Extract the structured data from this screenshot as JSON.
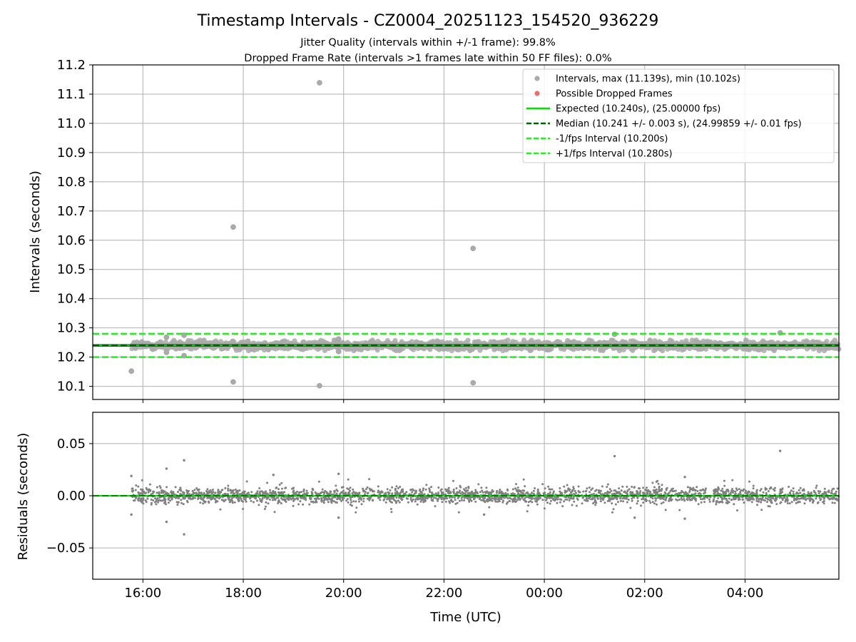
{
  "chart_data": {
    "type": "scatter",
    "title": "Timestamp Intervals - CZ0004_20251123_154520_936229",
    "subtitles": [
      "Jitter Quality (intervals within +/-1 frame): 99.8%",
      "Dropped Frame Rate (intervals >1 frames late within 50 FF files): 0.0%"
    ],
    "xlabel": "Time (UTC)",
    "x_tick_labels": [
      "16:00",
      "18:00",
      "20:00",
      "22:00",
      "00:00",
      "02:00",
      "04:00"
    ],
    "x_tick_hours": [
      16,
      18,
      20,
      22,
      24,
      26,
      28
    ],
    "xlim_hours": [
      15.0,
      29.87
    ],
    "grid": true,
    "top": {
      "ylabel": "Intervals (seconds)",
      "ylim": [
        10.055,
        11.2
      ],
      "y_ticks": [
        "10.1",
        "10.2",
        "10.3",
        "10.4",
        "10.5",
        "10.6",
        "10.7",
        "10.8",
        "10.9",
        "11.0",
        "11.1",
        "11.2"
      ],
      "y_tick_values": [
        10.1,
        10.2,
        10.3,
        10.4,
        10.5,
        10.6,
        10.7,
        10.8,
        10.9,
        11.0,
        11.1,
        11.2
      ],
      "legend_position": "top-right",
      "legend": [
        {
          "label": "Intervals, max (11.139s), min (10.102s)",
          "kind": "marker",
          "color": "#aaaaaa"
        },
        {
          "label": "Possible Dropped Frames",
          "kind": "marker",
          "color": "#f06a6a"
        },
        {
          "label": "Expected (10.240s), (25.00000 fps)",
          "kind": "line",
          "color": "#00e000"
        },
        {
          "label": "Median (10.241 +/- 0.003 s), (24.99859 +/- 0.01 fps)",
          "kind": "dashed",
          "color": "#006400"
        },
        {
          "label": "-1/fps Interval (10.200s)",
          "kind": "dashed",
          "color": "#22ee22"
        },
        {
          "label": "+1/fps Interval (10.280s)",
          "kind": "dashed",
          "color": "#22ee22"
        }
      ],
      "lines": [
        {
          "name": "expected",
          "y": 10.24,
          "style": "solid",
          "color": "#00e000"
        },
        {
          "name": "median",
          "y": 10.241,
          "style": "dashed",
          "color": "#006400"
        },
        {
          "name": "minus-1fps",
          "y": 10.2,
          "style": "dashed",
          "color": "#22ee22"
        },
        {
          "name": "plus-1fps",
          "y": 10.28,
          "style": "dashed",
          "color": "#22ee22"
        }
      ],
      "data_range_hours": [
        15.78,
        29.87
      ],
      "band": {
        "center": 10.24,
        "half_width": 0.018
      },
      "outliers": [
        {
          "x": 19.52,
          "y": 11.139
        },
        {
          "x": 17.8,
          "y": 10.645
        },
        {
          "x": 22.58,
          "y": 10.572
        },
        {
          "x": 15.77,
          "y": 10.152
        },
        {
          "x": 17.8,
          "y": 10.115
        },
        {
          "x": 19.52,
          "y": 10.102
        },
        {
          "x": 22.58,
          "y": 10.112
        },
        {
          "x": 16.47,
          "y": 10.268
        },
        {
          "x": 16.82,
          "y": 10.275
        },
        {
          "x": 16.47,
          "y": 10.216
        },
        {
          "x": 16.82,
          "y": 10.205
        },
        {
          "x": 19.9,
          "y": 10.262
        },
        {
          "x": 19.9,
          "y": 10.219
        },
        {
          "x": 25.4,
          "y": 10.278
        },
        {
          "x": 28.7,
          "y": 10.283
        }
      ]
    },
    "bottom": {
      "ylabel": "Residuals (seconds)",
      "ylim": [
        -0.08,
        0.08
      ],
      "y_ticks": [
        "−0.05",
        "0.00",
        "0.05"
      ],
      "y_tick_values": [
        -0.05,
        0.0,
        0.05
      ],
      "zero_line_color": "#00e000",
      "median_line_color": "#006400",
      "band_half_width": 0.008,
      "outliers": [
        {
          "x": 16.47,
          "y": 0.026
        },
        {
          "x": 16.82,
          "y": 0.034
        },
        {
          "x": 16.47,
          "y": -0.025
        },
        {
          "x": 16.82,
          "y": -0.037
        },
        {
          "x": 15.77,
          "y": 0.019
        },
        {
          "x": 15.77,
          "y": -0.018
        },
        {
          "x": 25.4,
          "y": 0.038
        },
        {
          "x": 28.7,
          "y": 0.043
        },
        {
          "x": 19.9,
          "y": 0.021
        },
        {
          "x": 19.9,
          "y": -0.021
        },
        {
          "x": 18.6,
          "y": 0.02
        },
        {
          "x": 22.8,
          "y": -0.018
        },
        {
          "x": 25.8,
          "y": -0.021
        },
        {
          "x": 26.8,
          "y": 0.018
        },
        {
          "x": 26.8,
          "y": -0.022
        }
      ]
    },
    "colors": {
      "points": "#808080",
      "top_points": "#aaaaaa",
      "median_line": "#3a3a3a",
      "grid": "#b0b0b0"
    }
  }
}
